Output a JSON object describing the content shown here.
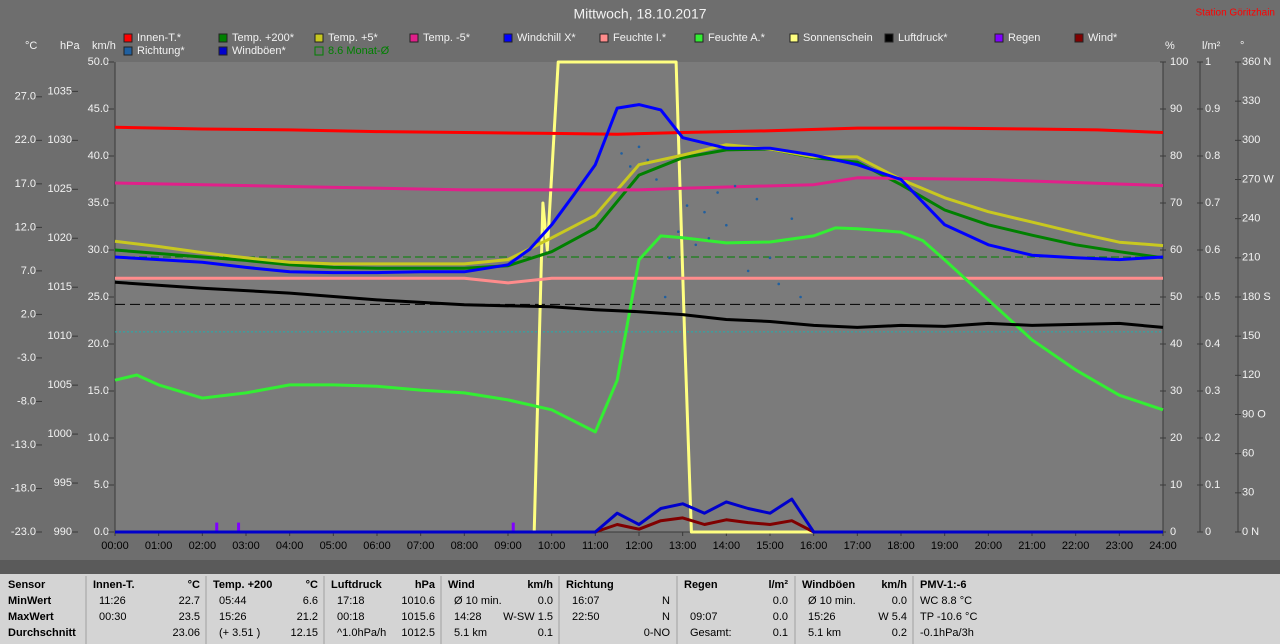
{
  "chart_data": {
    "type": "line",
    "title": "Mittwoch, 18.10.2017",
    "station": "Station Göritzhain",
    "xlim": [
      0,
      24
    ],
    "xticks": [
      {
        "value": 0,
        "label": "00:00"
      },
      {
        "value": 1,
        "label": "01:00"
      },
      {
        "value": 2,
        "label": "02:00"
      },
      {
        "value": 3,
        "label": "03:00"
      },
      {
        "value": 4,
        "label": "04:00"
      },
      {
        "value": 5,
        "label": "05:00"
      },
      {
        "value": 6,
        "label": "06:00"
      },
      {
        "value": 7,
        "label": "07:00"
      },
      {
        "value": 8,
        "label": "08:00"
      },
      {
        "value": 9,
        "label": "09:00"
      },
      {
        "value": 10,
        "label": "10:00"
      },
      {
        "value": 11,
        "label": "11:00"
      },
      {
        "value": 12,
        "label": "12:00"
      },
      {
        "value": 13,
        "label": "13:00"
      },
      {
        "value": 14,
        "label": "14:00"
      },
      {
        "value": 15,
        "label": "15:00"
      },
      {
        "value": 16,
        "label": "16:00"
      },
      {
        "value": 17,
        "label": "17:00"
      },
      {
        "value": 18,
        "label": "18:00"
      },
      {
        "value": 19,
        "label": "19:00"
      },
      {
        "value": 20,
        "label": "20:00"
      },
      {
        "value": 21,
        "label": "21:00"
      },
      {
        "value": 22,
        "label": "22:00"
      },
      {
        "value": 23,
        "label": "23:00"
      },
      {
        "value": 24,
        "label": "24:00"
      }
    ],
    "axes": {
      "temp": {
        "label": "°C",
        "ylim": [
          -23,
          31
        ],
        "yticks": [
          {
            "value": 27,
            "label": "27.0"
          },
          {
            "value": 22,
            "label": "22.0"
          },
          {
            "value": 17,
            "label": "17.0"
          },
          {
            "value": 12,
            "label": "12.0"
          },
          {
            "value": 7,
            "label": "7.0"
          },
          {
            "value": 2,
            "label": "2.0"
          },
          {
            "value": -3,
            "label": "-3.0"
          },
          {
            "value": -8,
            "label": "-8.0"
          },
          {
            "value": -13,
            "label": "-13.0"
          },
          {
            "value": -18,
            "label": "-18.0"
          },
          {
            "value": -23,
            "label": "-23.0"
          }
        ]
      },
      "hpa": {
        "label": "hPa",
        "ylim": [
          990,
          1038
        ],
        "yticks": [
          1035,
          1030,
          1025,
          1020,
          1015,
          1010,
          1005,
          1000,
          995,
          990
        ]
      },
      "kmh": {
        "label": "km/h",
        "ylim": [
          0,
          50
        ],
        "yticks": [
          {
            "value": 50,
            "label": "50.0"
          },
          {
            "value": 45,
            "label": "45.0"
          },
          {
            "value": 40,
            "label": "40.0"
          },
          {
            "value": 35,
            "label": "35.0"
          },
          {
            "value": 30,
            "label": "30.0"
          },
          {
            "value": 25,
            "label": "25.0"
          },
          {
            "value": 20,
            "label": "20.0"
          },
          {
            "value": 15,
            "label": "15.0"
          },
          {
            "value": 10,
            "label": "10.0"
          },
          {
            "value": 5,
            "label": "5.0"
          },
          {
            "value": 0,
            "label": "0.0"
          }
        ]
      },
      "pct": {
        "label": "%",
        "ylim": [
          0,
          100
        ],
        "yticks": [
          100,
          90,
          80,
          70,
          60,
          50,
          40,
          30,
          20,
          10,
          0
        ]
      },
      "rain": {
        "label": "l/m²",
        "ylim": [
          0,
          1
        ],
        "yticks": [
          1,
          0.9,
          0.8,
          0.7,
          0.6,
          0.5,
          0.4,
          0.3,
          0.2,
          0.1,
          0
        ]
      },
      "deg": {
        "label": "°",
        "ylim": [
          0,
          360
        ],
        "yticks": [
          {
            "value": 360,
            "label": "360 N"
          },
          330,
          300,
          {
            "value": 270,
            "label": "270 W"
          },
          240,
          210,
          {
            "value": 180,
            "label": "180 S"
          },
          150,
          120,
          {
            "value": 90,
            "label": "90 O"
          },
          60,
          30,
          {
            "value": 0,
            "label": "0 N"
          }
        ]
      }
    },
    "series": [
      {
        "name": "Sonnenschein",
        "color": "#ffff80",
        "axis": "pct",
        "style": "line",
        "x": [
          0,
          9.6,
          9.8,
          9.9,
          10.15,
          12.85,
          13.05,
          13.2,
          24
        ],
        "values": [
          0,
          0,
          70,
          60,
          100,
          100,
          40,
          0,
          0
        ]
      },
      {
        "name": "Innen-T.*",
        "color": "#ff0000",
        "axis": "temp",
        "style": "line",
        "x": [
          0,
          2,
          4,
          6,
          8,
          10,
          11.5,
          13,
          15,
          17,
          19,
          21,
          22.5,
          24
        ],
        "values": [
          23.5,
          23.3,
          23.2,
          23.0,
          22.9,
          22.8,
          22.7,
          22.9,
          23.1,
          23.4,
          23.4,
          23.3,
          23.2,
          22.9
        ]
      },
      {
        "name": "Temp. +200*",
        "color": "#008000",
        "axis": "temp",
        "style": "line",
        "x": [
          0,
          1,
          2,
          3,
          4,
          5,
          6,
          7,
          8,
          9,
          10,
          11,
          12,
          13,
          14,
          15,
          16,
          17,
          18,
          19,
          20,
          21,
          22,
          23,
          24
        ],
        "values": [
          9.4,
          9.0,
          8.6,
          8.2,
          7.7,
          7.4,
          7.3,
          7.3,
          7.3,
          7.6,
          9.2,
          11.9,
          18.0,
          20.0,
          20.9,
          21.0,
          20.0,
          19.5,
          16.9,
          14.0,
          12.3,
          11.1,
          10.0,
          9.2,
          8.5
        ]
      },
      {
        "name": "Temp. +5*",
        "color": "#c8c820",
        "axis": "temp",
        "style": "line",
        "x": [
          0,
          1,
          2,
          3,
          4,
          5,
          6,
          7,
          8,
          9,
          10,
          11,
          12,
          13,
          14,
          15,
          16,
          17,
          18,
          19,
          20,
          21,
          22,
          23,
          24
        ],
        "values": [
          10.4,
          9.8,
          9.1,
          8.5,
          8.0,
          7.8,
          7.8,
          7.8,
          7.8,
          8.3,
          10.8,
          13.4,
          19.2,
          20.3,
          21.5,
          21.0,
          20.1,
          20.1,
          17.5,
          15.4,
          13.8,
          12.6,
          11.4,
          10.3,
          9.9
        ]
      },
      {
        "name": "Temp. -5*",
        "color": "#e0208a",
        "axis": "temp",
        "style": "line",
        "x": [
          0,
          4,
          8,
          10,
          12,
          13,
          16,
          17,
          20,
          24
        ],
        "values": [
          17.1,
          16.7,
          16.3,
          16.3,
          16.3,
          16.5,
          16.9,
          17.7,
          17.5,
          16.8
        ]
      },
      {
        "name": "Windchill X*",
        "color": "#0000ff",
        "axis": "temp",
        "style": "line",
        "x": [
          0,
          1,
          2,
          3,
          4,
          5,
          6,
          7,
          8,
          9,
          9.5,
          10,
          10.5,
          11,
          11.5,
          12,
          12.5,
          13,
          14,
          15,
          16,
          17,
          18,
          19,
          20,
          21,
          22,
          23,
          24
        ],
        "values": [
          8.6,
          8.3,
          8.0,
          7.4,
          6.9,
          6.8,
          6.8,
          6.9,
          6.9,
          7.7,
          9.5,
          12.3,
          15.7,
          19.2,
          25.7,
          26.1,
          25.5,
          22.3,
          21.1,
          21.1,
          20.3,
          19.2,
          17.5,
          12.3,
          10.0,
          8.8,
          8.5,
          8.3,
          8.6
        ]
      },
      {
        "name": "Feuchte I.*",
        "color": "#ff8c8c",
        "axis": "pct",
        "style": "line",
        "x": [
          0,
          8,
          9,
          10,
          24
        ],
        "values": [
          54,
          54,
          53,
          54,
          54
        ]
      },
      {
        "name": "Feuchte A.*",
        "color": "#33ee33",
        "axis": "pct",
        "style": "line",
        "x": [
          0,
          0.5,
          1,
          2,
          3,
          4,
          5,
          6,
          7,
          8,
          9,
          10,
          11,
          11.5,
          12,
          12.5,
          13,
          14,
          15,
          16,
          16.5,
          17,
          18,
          18.5,
          19,
          20,
          21,
          22,
          23,
          24
        ],
        "values": [
          32.3,
          33.4,
          31.3,
          28.5,
          29.6,
          31.3,
          31.3,
          31.0,
          30.2,
          29.6,
          28.1,
          26.0,
          21.3,
          32.3,
          57.9,
          63.0,
          62.6,
          61.5,
          61.7,
          63.0,
          64.7,
          64.5,
          63.8,
          62.0,
          57.9,
          49.4,
          40.9,
          34.5,
          29.1,
          26.0
        ]
      },
      {
        "name": "Luftdruck*",
        "color": "#000000",
        "axis": "hpa",
        "style": "line",
        "x": [
          0,
          2,
          4,
          6,
          8,
          10,
          11,
          12,
          13,
          14,
          15,
          16,
          17,
          18,
          19,
          20,
          21,
          22,
          23,
          24
        ],
        "values": [
          1015.5,
          1014.9,
          1014.4,
          1013.7,
          1013.2,
          1013.0,
          1012.7,
          1012.5,
          1012.2,
          1011.7,
          1011.5,
          1011.1,
          1010.9,
          1011.1,
          1011.0,
          1011.3,
          1011.1,
          1011.2,
          1011.3,
          1010.9
        ]
      },
      {
        "name": "Regen",
        "color": "#8000ff",
        "axis": "rain",
        "style": "bar",
        "x": [
          2.33,
          2.83,
          9.12
        ],
        "values": [
          0.02,
          0.02,
          0.02
        ]
      },
      {
        "name": "Wind*",
        "color": "#800000",
        "axis": "kmh",
        "style": "line",
        "x": [
          0,
          11,
          11.5,
          12,
          12.5,
          13,
          13.5,
          14,
          14.5,
          15,
          15.5,
          16,
          24
        ],
        "values": [
          0,
          0,
          0.8,
          0.3,
          1.2,
          1.5,
          0.8,
          1.3,
          1.0,
          0.8,
          1.2,
          0,
          0
        ]
      },
      {
        "name": "Richtung*",
        "color": "#2060a0",
        "axis": "deg",
        "style": "dot",
        "x": [
          11.6,
          11.8,
          12.0,
          12.2,
          12.4,
          12.6,
          12.9,
          13.1,
          13.3,
          13.5,
          13.8,
          14.0,
          14.2,
          14.5,
          14.7,
          15.0,
          15.2,
          15.5,
          15.7,
          12.7,
          13.6
        ],
        "values": [
          290,
          280,
          295,
          285,
          270,
          180,
          230,
          250,
          220,
          245,
          260,
          235,
          265,
          200,
          255,
          210,
          190,
          240,
          180,
          210,
          225
        ]
      },
      {
        "name": "Windböen*",
        "color": "#0000cc",
        "axis": "kmh",
        "style": "line",
        "x": [
          0,
          11,
          11.5,
          12,
          12.5,
          13,
          13.5,
          14,
          14.5,
          15,
          15.5,
          16,
          24
        ],
        "values": [
          0,
          0,
          2.0,
          0.8,
          2.5,
          3.0,
          2.0,
          3.2,
          2.5,
          2.0,
          3.5,
          0,
          0
        ]
      }
    ],
    "reference_lines": [
      {
        "label": "8.6 Monat-Ø",
        "value": 8.6,
        "axis": "temp",
        "color": "#008000"
      },
      {
        "value": 1013.25,
        "axis": "hpa",
        "color": "#000000"
      },
      {
        "value": 0,
        "axis": "temp",
        "color": "#20b0b0"
      }
    ]
  },
  "summary": {
    "row_labels": [
      "Sensor",
      "MinWert",
      "MaxWert",
      "Durchschnitt"
    ],
    "groups": [
      {
        "title": "Innen-T.",
        "unit": "°C",
        "cells": [
          [
            "11:26",
            "22.7"
          ],
          [
            "00:30",
            "23.5"
          ],
          [
            null,
            "23.06"
          ]
        ]
      },
      {
        "title": "Temp. +200",
        "unit": "°C",
        "cells": [
          [
            "05:44",
            "6.6"
          ],
          [
            "15:26",
            "21.2"
          ],
          [
            "(+ 3.51 )",
            "12.15"
          ]
        ]
      },
      {
        "title": "Luftdruck",
        "unit": "hPa",
        "cells": [
          [
            "17:18",
            "1010.6"
          ],
          [
            "00:18",
            "1015.6"
          ],
          [
            "^1.0hPa/h",
            "1012.5"
          ]
        ]
      },
      {
        "title": "Wind",
        "unit": "km/h",
        "cells": [
          [
            "Ø 10 min.",
            "0.0"
          ],
          [
            "14:28",
            "W-SW 1.5"
          ],
          [
            "5.1 km",
            "0.1"
          ]
        ]
      },
      {
        "title": "Richtung",
        "cells": [
          [
            "16:07",
            "N"
          ],
          [
            "22:50",
            "N"
          ],
          [
            null,
            "0-NO"
          ]
        ]
      },
      {
        "title": "Regen",
        "unit": "l/m²",
        "cells": [
          [
            null,
            "0.0"
          ],
          [
            "09:07",
            "0.0"
          ],
          [
            "Gesamt:",
            "0.1"
          ]
        ]
      },
      {
        "title": "Windböen",
        "unit": "km/h",
        "cells": [
          [
            "Ø 10 min.",
            "0.0"
          ],
          [
            "15:26",
            "W 5.4"
          ],
          [
            "5.1 km",
            "0.2"
          ]
        ]
      },
      {
        "title": "PMV-1:-6",
        "cells": [
          [
            "WC 8.8 °C"
          ],
          [
            "TP -10.6 °C"
          ],
          [
            "-0.1hPa/3h"
          ]
        ]
      }
    ]
  }
}
